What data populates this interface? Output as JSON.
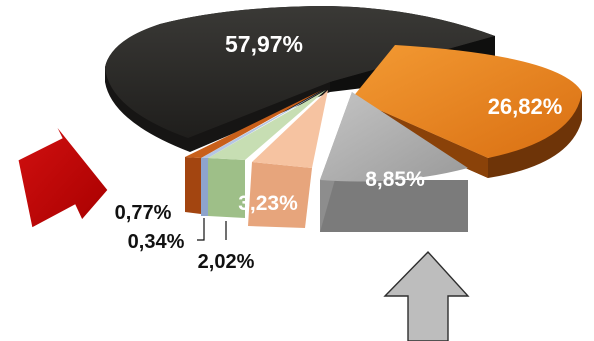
{
  "chart_data": {
    "type": "pie",
    "style": "3d-exploded",
    "slices": [
      {
        "value": 57.97,
        "label": "57,97%",
        "color": "#2b2a28"
      },
      {
        "value": 26.82,
        "label": "26,82%",
        "color": "#e8821e"
      },
      {
        "value": 8.85,
        "label": "8,85%",
        "color": "#a9a9a9"
      },
      {
        "value": 3.23,
        "label": "3,23%",
        "color": "#f2b48c"
      },
      {
        "value": 2.02,
        "label": "2,02%",
        "color": "#b9d3a3"
      },
      {
        "value": 0.34,
        "label": "0,34%",
        "color": "#9fb3d6"
      },
      {
        "value": 0.77,
        "label": "0,77%",
        "color": "#b5510f"
      }
    ],
    "arrows": [
      {
        "direction": "down-right",
        "color": "#c00000",
        "icon": "red-arrow-icon"
      },
      {
        "direction": "up",
        "color": "#b8b8b8",
        "icon": "gray-arrow-icon"
      }
    ]
  }
}
